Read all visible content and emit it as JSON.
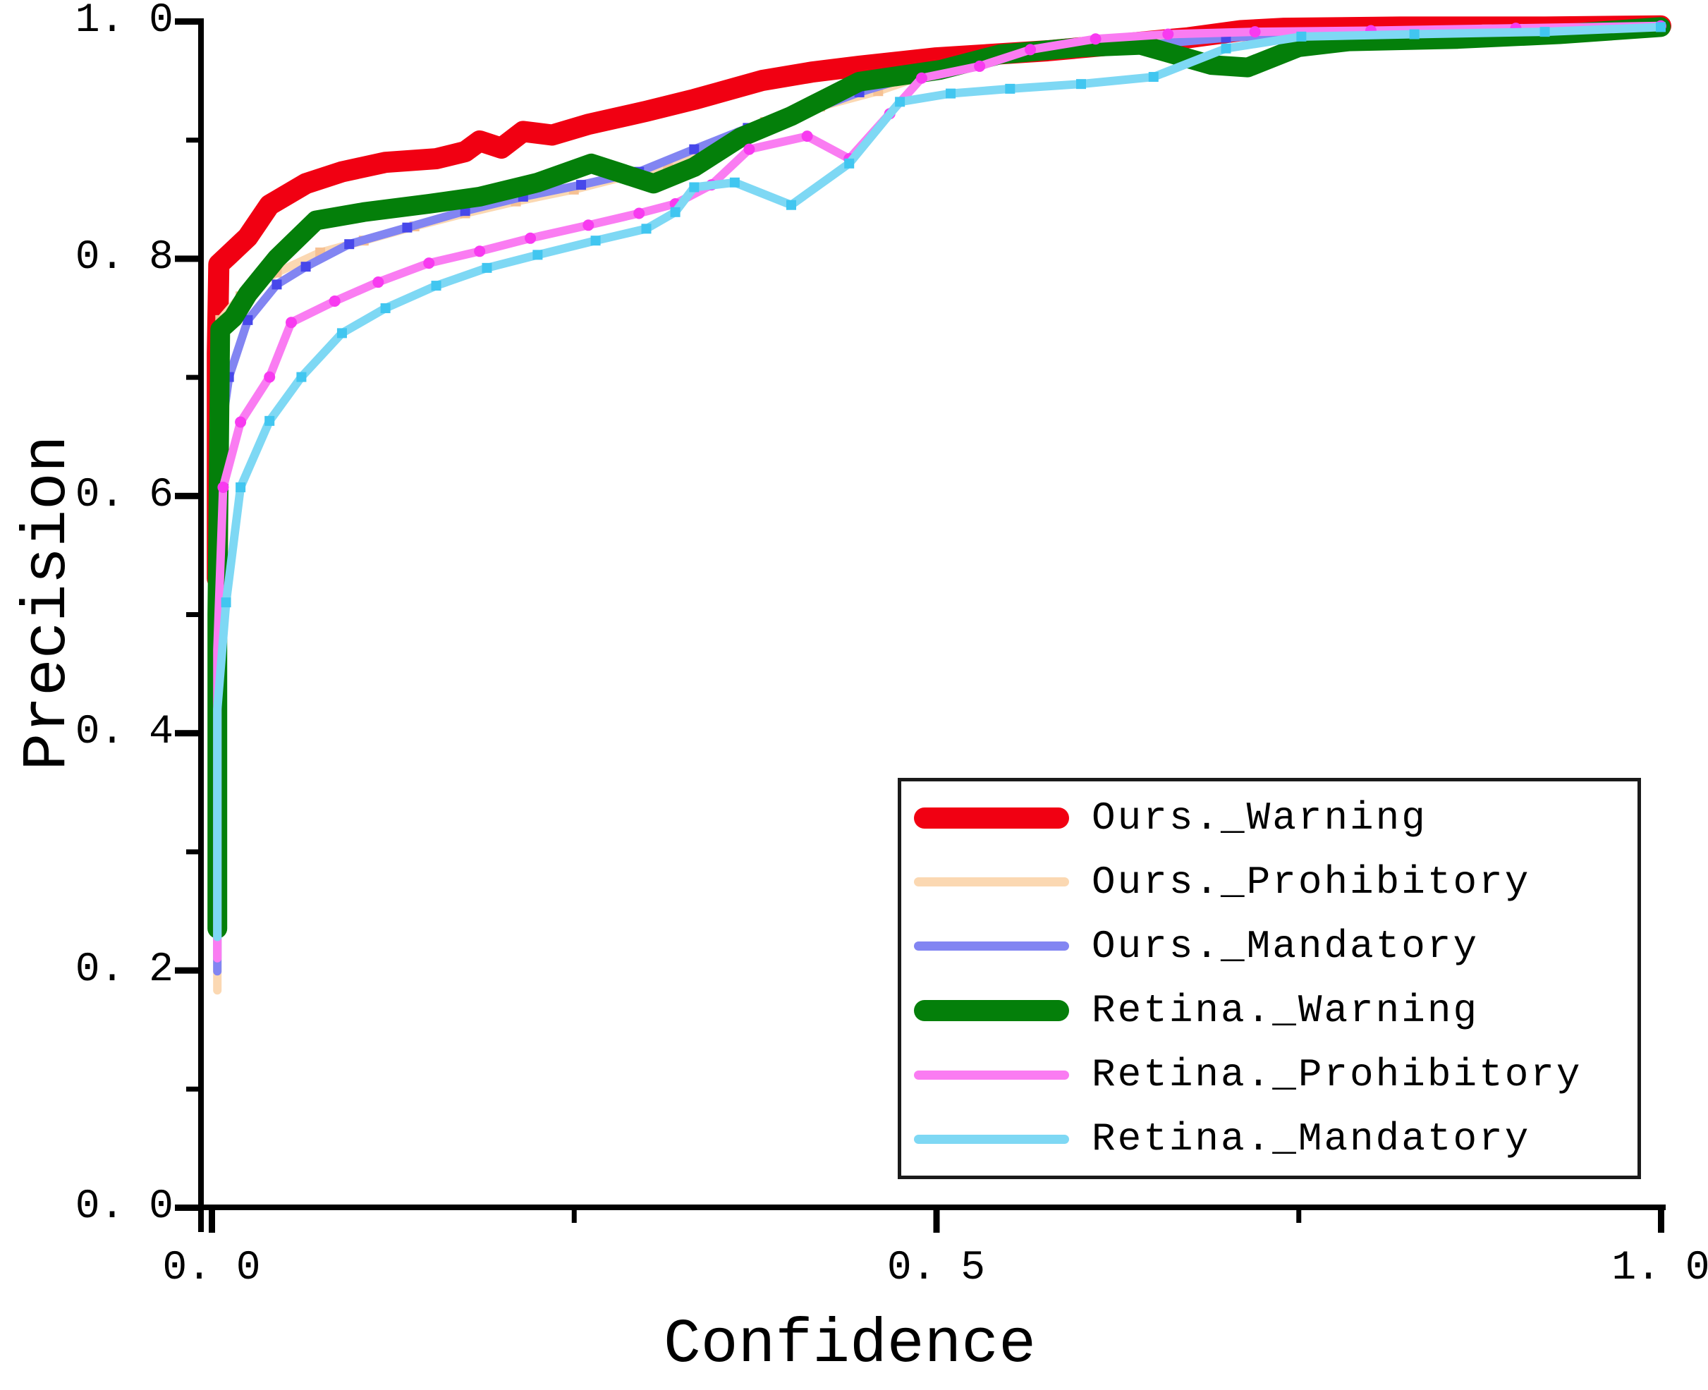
{
  "figure": {
    "background": "#ffffff",
    "axis_color": "#000000",
    "legend_border_color": "#1a1a1a"
  },
  "axes": {
    "x": {
      "title": "Confidence",
      "major_ticks": [
        {
          "value": 0.0,
          "label": "0. 0"
        },
        {
          "value": 0.5,
          "label": "0. 5"
        },
        {
          "value": 1.0,
          "label": "1. 0"
        }
      ],
      "minor_ticks": [
        0.25,
        0.75
      ]
    },
    "y": {
      "title": "Precision",
      "major_ticks": [
        {
          "value": 0.0,
          "label": "0. 0"
        },
        {
          "value": 0.2,
          "label": "0. 2"
        },
        {
          "value": 0.4,
          "label": "0. 4"
        },
        {
          "value": 0.6,
          "label": "0. 6"
        },
        {
          "value": 0.8,
          "label": "0. 8"
        },
        {
          "value": 1.0,
          "label": "1. 0"
        }
      ],
      "minor_ticks": [
        0.1,
        0.3,
        0.5,
        0.7,
        0.9
      ]
    }
  },
  "chart_data": {
    "type": "line",
    "title": "",
    "xlabel": "Confidence",
    "ylabel": "Precision",
    "xlim": [
      0.0,
      1.0
    ],
    "ylim": [
      0.0,
      1.0
    ],
    "grid": false,
    "legend_position": "lower right",
    "series": [
      {
        "name": "Ours._Warning",
        "color": "#f10012",
        "line_width": 30,
        "marker": false,
        "marker_color": "#f10012",
        "marker_shape": "square",
        "points": [
          [
            0.004,
            0.53
          ],
          [
            0.004,
            0.72
          ],
          [
            0.005,
            0.795
          ],
          [
            0.012,
            0.803
          ],
          [
            0.025,
            0.818
          ],
          [
            0.04,
            0.845
          ],
          [
            0.065,
            0.863
          ],
          [
            0.09,
            0.873
          ],
          [
            0.12,
            0.881
          ],
          [
            0.155,
            0.884
          ],
          [
            0.175,
            0.89
          ],
          [
            0.185,
            0.899
          ],
          [
            0.2,
            0.893
          ],
          [
            0.215,
            0.907
          ],
          [
            0.235,
            0.904
          ],
          [
            0.26,
            0.913
          ],
          [
            0.3,
            0.924
          ],
          [
            0.333,
            0.934
          ],
          [
            0.38,
            0.95
          ],
          [
            0.414,
            0.957
          ],
          [
            0.447,
            0.962
          ],
          [
            0.5,
            0.969
          ],
          [
            0.577,
            0.975
          ],
          [
            0.63,
            0.981
          ],
          [
            0.674,
            0.986
          ],
          [
            0.71,
            0.992
          ],
          [
            0.74,
            0.994
          ],
          [
            0.82,
            0.995
          ],
          [
            0.92,
            0.995
          ],
          [
            1.0,
            0.996
          ]
        ]
      },
      {
        "name": "Ours._Prohibitory",
        "color": "#fbd8b2",
        "line_width": 12,
        "marker": true,
        "marker_color": "#f6c193",
        "marker_shape": "square",
        "points": [
          [
            0.004,
            0.183
          ],
          [
            0.004,
            0.45
          ],
          [
            0.006,
            0.748
          ],
          [
            0.02,
            0.768
          ],
          [
            0.045,
            0.788
          ],
          [
            0.075,
            0.805
          ],
          [
            0.105,
            0.815
          ],
          [
            0.14,
            0.827
          ],
          [
            0.175,
            0.838
          ],
          [
            0.21,
            0.848
          ],
          [
            0.25,
            0.858
          ],
          [
            0.285,
            0.869
          ],
          [
            0.315,
            0.876
          ],
          [
            0.35,
            0.893
          ],
          [
            0.382,
            0.915
          ],
          [
            0.42,
            0.928
          ],
          [
            0.46,
            0.941
          ],
          [
            0.5,
            0.958
          ],
          [
            0.55,
            0.971
          ],
          [
            0.6,
            0.979
          ],
          [
            0.65,
            0.984
          ],
          [
            0.71,
            0.988
          ],
          [
            0.78,
            0.991
          ],
          [
            0.88,
            0.993
          ],
          [
            1.0,
            0.995
          ]
        ]
      },
      {
        "name": "Ours._Mandatory",
        "color": "#8285f2",
        "line_width": 12,
        "marker": true,
        "marker_color": "#4747ea",
        "marker_shape": "square",
        "points": [
          [
            0.004,
            0.199
          ],
          [
            0.004,
            0.46
          ],
          [
            0.006,
            0.648
          ],
          [
            0.012,
            0.7
          ],
          [
            0.025,
            0.748
          ],
          [
            0.045,
            0.778
          ],
          [
            0.065,
            0.793
          ],
          [
            0.095,
            0.812
          ],
          [
            0.135,
            0.826
          ],
          [
            0.175,
            0.84
          ],
          [
            0.215,
            0.852
          ],
          [
            0.255,
            0.862
          ],
          [
            0.295,
            0.873
          ],
          [
            0.333,
            0.892
          ],
          [
            0.37,
            0.91
          ],
          [
            0.407,
            0.922
          ],
          [
            0.447,
            0.94
          ],
          [
            0.49,
            0.956
          ],
          [
            0.52,
            0.964
          ],
          [
            0.551,
            0.97
          ],
          [
            0.606,
            0.976
          ],
          [
            0.645,
            0.98
          ],
          [
            0.7,
            0.986
          ],
          [
            0.76,
            0.99
          ],
          [
            0.85,
            0.992
          ],
          [
            1.0,
            0.996
          ]
        ]
      },
      {
        "name": "Retina._Warning",
        "color": "#047f0a",
        "line_width": 28,
        "marker": false,
        "marker_color": "#047f0a",
        "marker_shape": "square",
        "points": [
          [
            0.004,
            0.235
          ],
          [
            0.004,
            0.5
          ],
          [
            0.006,
            0.74
          ],
          [
            0.015,
            0.75
          ],
          [
            0.025,
            0.77
          ],
          [
            0.045,
            0.8
          ],
          [
            0.072,
            0.832
          ],
          [
            0.105,
            0.839
          ],
          [
            0.15,
            0.846
          ],
          [
            0.185,
            0.852
          ],
          [
            0.225,
            0.864
          ],
          [
            0.262,
            0.88
          ],
          [
            0.305,
            0.863
          ],
          [
            0.333,
            0.877
          ],
          [
            0.365,
            0.902
          ],
          [
            0.4,
            0.92
          ],
          [
            0.447,
            0.949
          ],
          [
            0.503,
            0.959
          ],
          [
            0.544,
            0.972
          ],
          [
            0.6,
            0.978
          ],
          [
            0.641,
            0.98
          ],
          [
            0.69,
            0.963
          ],
          [
            0.715,
            0.961
          ],
          [
            0.75,
            0.978
          ],
          [
            0.785,
            0.983
          ],
          [
            0.86,
            0.985
          ],
          [
            0.93,
            0.989
          ],
          [
            1.0,
            0.995
          ]
        ]
      },
      {
        "name": "Retina._Prohibitory",
        "color": "#fa7cf2",
        "line_width": 12,
        "marker": true,
        "marker_color": "#f83af0",
        "marker_shape": "circle",
        "points": [
          [
            0.004,
            0.21
          ],
          [
            0.004,
            0.47
          ],
          [
            0.008,
            0.607
          ],
          [
            0.02,
            0.662
          ],
          [
            0.04,
            0.7
          ],
          [
            0.055,
            0.746
          ],
          [
            0.085,
            0.764
          ],
          [
            0.115,
            0.78
          ],
          [
            0.15,
            0.796
          ],
          [
            0.185,
            0.806
          ],
          [
            0.22,
            0.817
          ],
          [
            0.26,
            0.828
          ],
          [
            0.295,
            0.838
          ],
          [
            0.32,
            0.846
          ],
          [
            0.345,
            0.862
          ],
          [
            0.371,
            0.892
          ],
          [
            0.411,
            0.903
          ],
          [
            0.44,
            0.884
          ],
          [
            0.468,
            0.922
          ],
          [
            0.49,
            0.952
          ],
          [
            0.53,
            0.962
          ],
          [
            0.565,
            0.976
          ],
          [
            0.61,
            0.985
          ],
          [
            0.66,
            0.989
          ],
          [
            0.72,
            0.991
          ],
          [
            0.8,
            0.992
          ],
          [
            0.9,
            0.994
          ],
          [
            1.0,
            0.996
          ]
        ]
      },
      {
        "name": "Retina._Mandatory",
        "color": "#7ed8f4",
        "line_width": 12,
        "marker": true,
        "marker_color": "#41c6f0",
        "marker_shape": "square",
        "points": [
          [
            0.004,
            0.228
          ],
          [
            0.004,
            0.42
          ],
          [
            0.01,
            0.51
          ],
          [
            0.02,
            0.607
          ],
          [
            0.04,
            0.663
          ],
          [
            0.062,
            0.7
          ],
          [
            0.09,
            0.737
          ],
          [
            0.12,
            0.758
          ],
          [
            0.155,
            0.777
          ],
          [
            0.19,
            0.792
          ],
          [
            0.225,
            0.803
          ],
          [
            0.265,
            0.815
          ],
          [
            0.3,
            0.825
          ],
          [
            0.32,
            0.839
          ],
          [
            0.333,
            0.86
          ],
          [
            0.361,
            0.864
          ],
          [
            0.4,
            0.845
          ],
          [
            0.44,
            0.88
          ],
          [
            0.475,
            0.932
          ],
          [
            0.51,
            0.939
          ],
          [
            0.551,
            0.943
          ],
          [
            0.6,
            0.947
          ],
          [
            0.65,
            0.953
          ],
          [
            0.7,
            0.977
          ],
          [
            0.752,
            0.987
          ],
          [
            0.83,
            0.989
          ],
          [
            0.92,
            0.991
          ],
          [
            1.0,
            0.995
          ]
        ]
      }
    ]
  }
}
